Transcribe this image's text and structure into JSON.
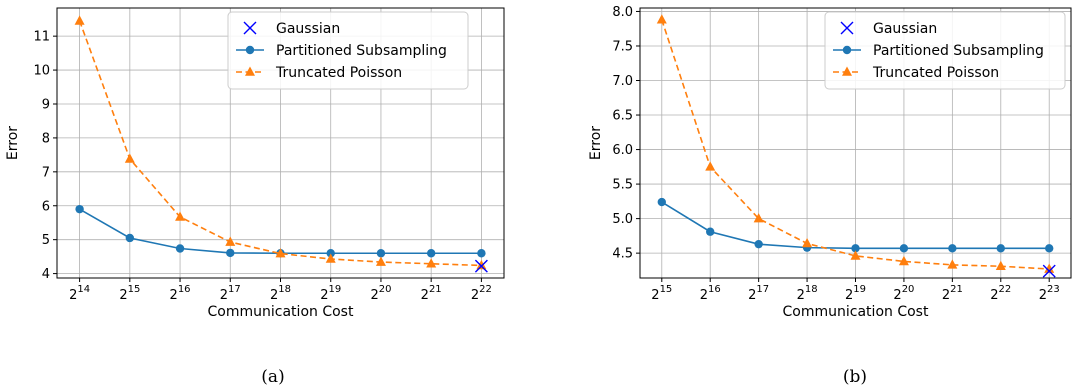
{
  "colors": {
    "gaussian": "#0000ff",
    "partitioned": "#1f77b4",
    "poisson": "#ff7f0e",
    "grid": "#b0b0b0"
  },
  "legend_labels": [
    "Gaussian",
    "Partitioned Subsampling",
    "Truncated Poisson"
  ],
  "chart_data": [
    {
      "type": "line",
      "caption": "(a)",
      "xlabel": "Communication Cost",
      "ylabel": "Error",
      "legend_position": "top-right",
      "grid": true,
      "x_exponents": [
        14,
        15,
        16,
        17,
        18,
        19,
        20,
        21,
        22
      ],
      "x_tick_labels": [
        {
          "b": "2",
          "e": "14"
        },
        {
          "b": "2",
          "e": "15"
        },
        {
          "b": "2",
          "e": "16"
        },
        {
          "b": "2",
          "e": "17"
        },
        {
          "b": "2",
          "e": "18"
        },
        {
          "b": "2",
          "e": "19"
        },
        {
          "b": "2",
          "e": "20"
        },
        {
          "b": "2",
          "e": "21"
        },
        {
          "b": "2",
          "e": "22"
        }
      ],
      "xlim": [
        13.55,
        22.45
      ],
      "ylim": [
        3.87,
        11.83
      ],
      "y_ticks": [
        4,
        5,
        6,
        7,
        8,
        9,
        10,
        11
      ],
      "y_tick_labels": [
        "4",
        "5",
        "6",
        "7",
        "8",
        "9",
        "10",
        "11"
      ],
      "series": [
        {
          "name": "Gaussian",
          "key": "gaussian",
          "marker": "x",
          "style": "none",
          "x": [
            22
          ],
          "y": [
            4.22
          ]
        },
        {
          "name": "Partitioned Subsampling",
          "key": "partitioned",
          "marker": "circle",
          "style": "solid",
          "x": [
            14,
            15,
            16,
            17,
            18,
            19,
            20,
            21,
            22
          ],
          "y": [
            5.9,
            5.05,
            4.74,
            4.61,
            4.6,
            4.6,
            4.6,
            4.6,
            4.6
          ]
        },
        {
          "name": "Truncated Poisson",
          "key": "poisson",
          "marker": "triangle",
          "style": "dashed",
          "x": [
            14,
            15,
            16,
            17,
            18,
            19,
            20,
            21,
            22
          ],
          "y": [
            11.45,
            7.38,
            5.67,
            4.93,
            4.59,
            4.43,
            4.34,
            4.29,
            4.24
          ]
        }
      ]
    },
    {
      "type": "line",
      "caption": "(b)",
      "xlabel": "Communication Cost",
      "ylabel": "Error",
      "legend_position": "top-right",
      "grid": true,
      "x_exponents": [
        15,
        16,
        17,
        18,
        19,
        20,
        21,
        22,
        23
      ],
      "x_tick_labels": [
        {
          "b": "2",
          "e": "15"
        },
        {
          "b": "2",
          "e": "16"
        },
        {
          "b": "2",
          "e": "17"
        },
        {
          "b": "2",
          "e": "18"
        },
        {
          "b": "2",
          "e": "19"
        },
        {
          "b": "2",
          "e": "20"
        },
        {
          "b": "2",
          "e": "21"
        },
        {
          "b": "2",
          "e": "22"
        },
        {
          "b": "2",
          "e": "23"
        }
      ],
      "xlim": [
        14.55,
        23.45
      ],
      "ylim": [
        4.14,
        8.05
      ],
      "y_ticks": [
        4.5,
        5.0,
        5.5,
        6.0,
        6.5,
        7.0,
        7.5,
        8.0
      ],
      "y_tick_labels": [
        "4.5",
        "5.0",
        "5.5",
        "6.0",
        "6.5",
        "7.0",
        "7.5",
        "8.0"
      ],
      "series": [
        {
          "name": "Gaussian",
          "key": "gaussian",
          "marker": "x",
          "style": "none",
          "x": [
            23
          ],
          "y": [
            4.24
          ]
        },
        {
          "name": "Partitioned Subsampling",
          "key": "partitioned",
          "marker": "circle",
          "style": "solid",
          "x": [
            15,
            16,
            17,
            18,
            19,
            20,
            21,
            22,
            23
          ],
          "y": [
            5.24,
            4.81,
            4.63,
            4.58,
            4.57,
            4.57,
            4.57,
            4.57,
            4.57
          ]
        },
        {
          "name": "Truncated Poisson",
          "key": "poisson",
          "marker": "triangle",
          "style": "dashed",
          "x": [
            15,
            16,
            17,
            18,
            19,
            20,
            21,
            22,
            23
          ],
          "y": [
            7.88,
            5.75,
            5.0,
            4.64,
            4.46,
            4.38,
            4.33,
            4.31,
            4.27
          ]
        }
      ]
    }
  ]
}
